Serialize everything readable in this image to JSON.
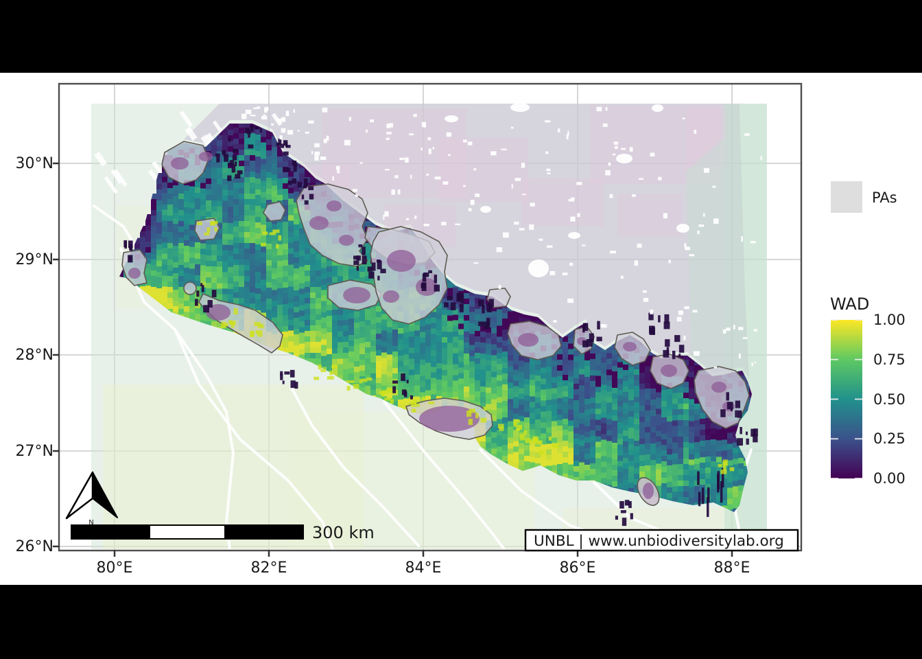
{
  "figure": {
    "background": "#000000",
    "content_background": "#ffffff",
    "panel_border_color": "#4d4d4d",
    "gridline_color": "#d6d6d6"
  },
  "axes": {
    "x": {
      "labels": [
        "80°E",
        "82°E",
        "84°E",
        "86°E",
        "88°E"
      ]
    },
    "y": {
      "labels": [
        "30°N",
        "29°N",
        "28°N",
        "27°N",
        "26°N"
      ]
    }
  },
  "legend_pas": {
    "label": "PAs",
    "swatch_color": "#dedede"
  },
  "legend_wad": {
    "title": "WAD",
    "tick_labels": [
      "1.00",
      "0.75",
      "0.50",
      "0.25",
      "0.00"
    ],
    "colormap": "viridis",
    "range": [
      0,
      1
    ]
  },
  "scalebar": {
    "label": "300 km"
  },
  "north_arrow": {
    "label": "N"
  },
  "attribution": {
    "text": "UNBL | www.unbiodiversitylab.org"
  },
  "map": {
    "region": "Nepal",
    "layer": "WAD raster, viridis 0-1",
    "overlay": "Protected areas (PAs), grey polygons",
    "basemap_colors": {
      "india_mint": "#e6efe8",
      "tibet_lavender": "#ded7e5",
      "east_mint": "#dcebe2",
      "pa_fill": "#d0ced8",
      "pa_purple": "#8f5c97",
      "dark_raster": "#240b3f"
    },
    "viridis_stops": [
      "#440154",
      "#3b528b",
      "#21918c",
      "#5ec962",
      "#fde725"
    ]
  }
}
